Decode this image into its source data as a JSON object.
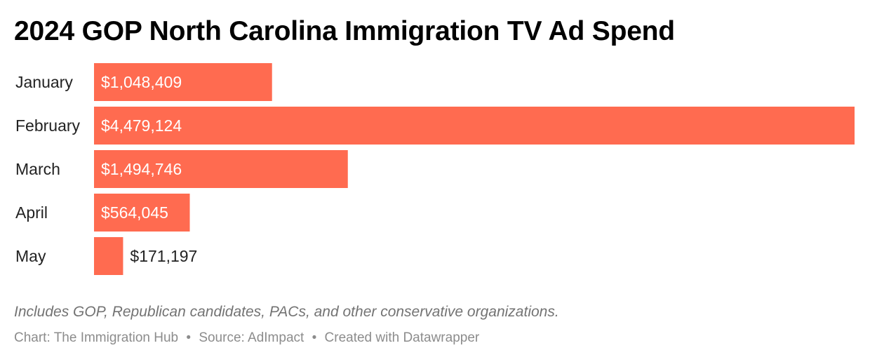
{
  "title": "2024 GOP North Carolina Immigration TV Ad Spend",
  "notes": "Includes GOP, Republican candidates, PACs, and other conservative organizations.",
  "footer": {
    "chart_label": "Chart:",
    "chart_by": "The Immigration Hub",
    "source_label": "Source:",
    "source": "AdImpact",
    "created_with": "Created with Datawrapper",
    "separator": "•"
  },
  "colors": {
    "bar": "#ff6b50",
    "label_inside": "#ffffff",
    "label_outside": "#222222"
  },
  "chart_data": {
    "type": "bar",
    "orientation": "horizontal",
    "title": "2024 GOP North Carolina Immigration TV Ad Spend",
    "categories": [
      "January",
      "February",
      "March",
      "April",
      "May"
    ],
    "values": [
      1048409,
      4479124,
      1494746,
      564045,
      171197
    ],
    "value_labels": [
      "$1,048,409",
      "$4,479,124",
      "$1,494,746",
      "$564,045",
      "$171,197"
    ],
    "xlabel": "",
    "ylabel": "",
    "xlim": [
      0,
      4479124
    ],
    "grid": false,
    "legend": "none"
  }
}
